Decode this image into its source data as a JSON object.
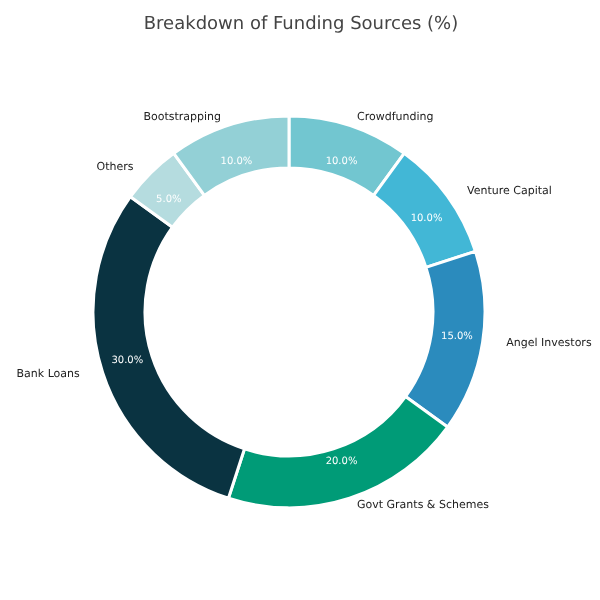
{
  "chart_data": {
    "type": "donut",
    "title": "Breakdown of Funding Sources (%)",
    "categories": [
      "Crowdfunding",
      "Venture Capital",
      "Angel Investors",
      "Govt Grants & Schemes",
      "Bank Loans",
      "Others",
      "Bootstrapping"
    ],
    "values": [
      10,
      10,
      15,
      20,
      30,
      5,
      10
    ],
    "value_labels": [
      "10.0%",
      "10.0%",
      "15.0%",
      "20.0%",
      "30.0%",
      "5.0%",
      "10.0%"
    ],
    "colors": [
      "#72c6d0",
      "#42b7d6",
      "#2b8bbd",
      "#009b77",
      "#0a3341",
      "#b5dcdf",
      "#93d0d6"
    ],
    "legend": false
  }
}
